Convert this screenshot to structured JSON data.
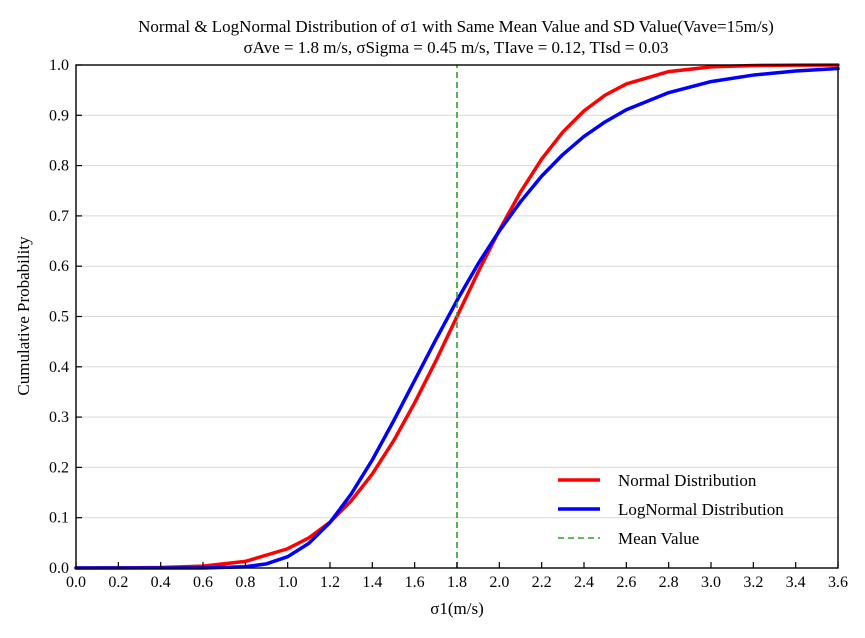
{
  "chart_data": {
    "type": "line",
    "title": "Normal & LogNormal Distribution of σ1 with Same Mean Value and SD Value(Vave=15m/s)",
    "subtitle": "σAve = 1.8 m/s, σSigma = 0.45 m/s, TIave = 0.12, TIsd = 0.03",
    "xlabel": "σ1(m/s)",
    "ylabel": "Cumulative Probability",
    "xlim": [
      0.0,
      3.6
    ],
    "ylim": [
      0.0,
      1.0
    ],
    "xticks": [
      "0.0",
      "0.2",
      "0.4",
      "0.6",
      "0.8",
      "1.0",
      "1.2",
      "1.4",
      "1.6",
      "1.8",
      "2.0",
      "2.2",
      "2.4",
      "2.6",
      "2.8",
      "3.0",
      "3.2",
      "3.4",
      "3.6"
    ],
    "yticks": [
      "0.0",
      "0.1",
      "0.2",
      "0.3",
      "0.4",
      "0.5",
      "0.6",
      "0.7",
      "0.8",
      "0.9",
      "1.0"
    ],
    "grid": "horizontal",
    "legend_position": "lower-right",
    "series": [
      {
        "name": "Normal Distribution",
        "color": "#ff0000",
        "style": "solid",
        "x": [
          0.0,
          0.2,
          0.4,
          0.6,
          0.8,
          1.0,
          1.1,
          1.2,
          1.3,
          1.4,
          1.5,
          1.6,
          1.7,
          1.8,
          1.9,
          2.0,
          2.1,
          2.2,
          2.3,
          2.4,
          2.5,
          2.6,
          2.8,
          3.0,
          3.2,
          3.4,
          3.6
        ],
        "y": [
          0.0,
          0.0002,
          0.0009,
          0.0038,
          0.0131,
          0.0383,
          0.0599,
          0.0912,
          0.1333,
          0.187,
          0.2525,
          0.3284,
          0.4115,
          0.5,
          0.5885,
          0.6716,
          0.7475,
          0.813,
          0.8667,
          0.9088,
          0.9401,
          0.9623,
          0.9869,
          0.9962,
          0.9991,
          0.9998,
          1.0
        ]
      },
      {
        "name": "LogNormal Distribution",
        "color": "#0000ff",
        "style": "solid",
        "x": [
          0.0,
          0.4,
          0.6,
          0.8,
          0.9,
          1.0,
          1.1,
          1.2,
          1.3,
          1.4,
          1.5,
          1.6,
          1.7,
          1.8,
          1.9,
          2.0,
          2.1,
          2.2,
          2.3,
          2.4,
          2.5,
          2.6,
          2.8,
          3.0,
          3.2,
          3.4,
          3.6
        ],
        "y": [
          0.0,
          0.0,
          0.0001,
          0.0024,
          0.0083,
          0.0225,
          0.049,
          0.0905,
          0.147,
          0.215,
          0.292,
          0.373,
          0.454,
          0.532,
          0.605,
          0.67,
          0.728,
          0.779,
          0.822,
          0.858,
          0.887,
          0.911,
          0.945,
          0.967,
          0.98,
          0.988,
          0.993
        ]
      },
      {
        "name": "Mean Value",
        "color": "#2ca02c",
        "style": "dashed",
        "x": [
          1.8,
          1.8
        ],
        "y": [
          0.0,
          1.0
        ]
      }
    ]
  }
}
